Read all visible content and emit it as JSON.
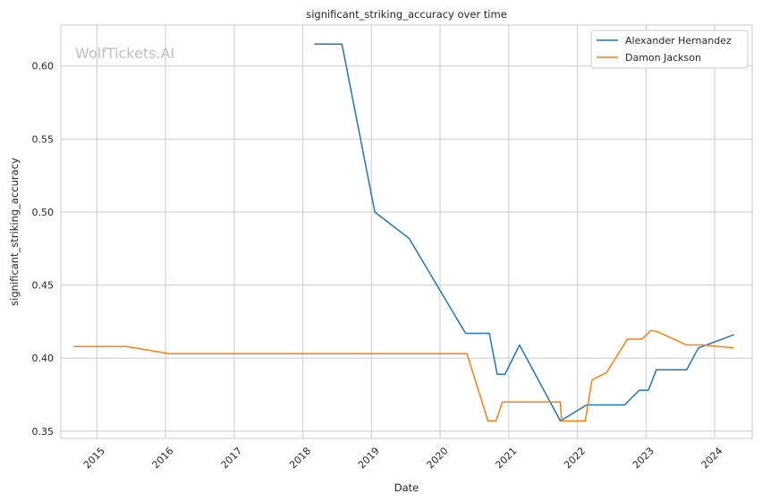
{
  "chart_data": {
    "type": "line",
    "title": "significant_striking_accuracy over time",
    "xlabel": "Date",
    "ylabel": "significant_striking_accuracy",
    "watermark": "WolfTickets.AI",
    "x_ticks": [
      "2015",
      "2016",
      "2017",
      "2018",
      "2019",
      "2020",
      "2021",
      "2022",
      "2023",
      "2024"
    ],
    "y_ticks": [
      "0.35",
      "0.40",
      "0.45",
      "0.50",
      "0.55",
      "0.60"
    ],
    "xlim": [
      "2014-06-23",
      "2024-07-19"
    ],
    "ylim": [
      0.345,
      0.628
    ],
    "grid": true,
    "legend_position": "top-right",
    "series": [
      {
        "name": "Alexander Hernandez",
        "color": "#1f77b4",
        "points": [
          [
            "2018-03-03",
            0.615
          ],
          [
            "2018-07-28",
            0.615
          ],
          [
            "2019-01-19",
            0.5
          ],
          [
            "2019-07-20",
            0.482
          ],
          [
            "2020-05-16",
            0.417
          ],
          [
            "2020-09-19",
            0.417
          ],
          [
            "2020-10-31",
            0.389
          ],
          [
            "2020-12-12",
            0.389
          ],
          [
            "2021-02-27",
            0.409
          ],
          [
            "2021-10-02",
            0.357
          ],
          [
            "2022-02-19",
            0.368
          ],
          [
            "2022-09-10",
            0.368
          ],
          [
            "2022-11-26",
            0.378
          ],
          [
            "2023-01-14",
            0.378
          ],
          [
            "2023-02-25",
            0.392
          ],
          [
            "2023-08-05",
            0.392
          ],
          [
            "2023-10-07",
            0.407
          ],
          [
            "2024-04-13",
            0.416
          ]
        ]
      },
      {
        "name": "Damon Jackson",
        "color": "#ff7f0e",
        "points": [
          [
            "2014-08-30",
            0.408
          ],
          [
            "2015-06-06",
            0.408
          ],
          [
            "2016-01-23",
            0.403
          ],
          [
            "2020-05-23",
            0.403
          ],
          [
            "2020-09-12",
            0.357
          ],
          [
            "2020-10-24",
            0.357
          ],
          [
            "2020-11-28",
            0.37
          ],
          [
            "2021-10-02",
            0.37
          ],
          [
            "2021-10-09",
            0.357
          ],
          [
            "2022-02-12",
            0.357
          ],
          [
            "2022-03-19",
            0.385
          ],
          [
            "2022-06-04",
            0.39
          ],
          [
            "2022-09-24",
            0.413
          ],
          [
            "2022-12-10",
            0.413
          ],
          [
            "2023-01-28",
            0.419
          ],
          [
            "2023-03-04",
            0.418
          ],
          [
            "2023-08-05",
            0.409
          ],
          [
            "2023-10-28",
            0.409
          ],
          [
            "2024-04-13",
            0.407
          ]
        ]
      }
    ]
  }
}
